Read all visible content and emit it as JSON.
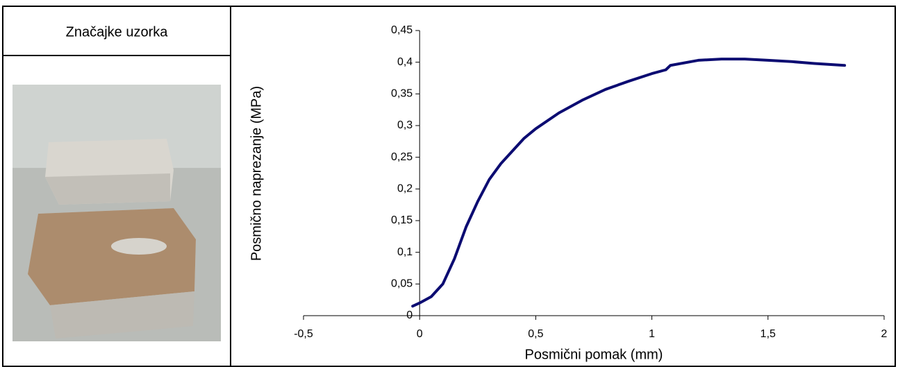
{
  "header": "Značajke uzorka",
  "chart_data": {
    "type": "line",
    "x_label": "Posmični pomak (mm)",
    "y_label": "Posmično naprezanje (MPa)",
    "xlim": [
      -0.5,
      2
    ],
    "xticks": [
      {
        "value": -0.5,
        "label": "-0,5"
      },
      0,
      {
        "value": 0.5,
        "label": "0,5"
      },
      1,
      {
        "value": 1.5,
        "label": "1,5"
      },
      2
    ],
    "ylim": [
      0,
      0.45
    ],
    "yticks": [
      0,
      {
        "value": 0.05,
        "label": "0,05"
      },
      {
        "value": 0.1,
        "label": "0,1"
      },
      {
        "value": 0.15,
        "label": "0,15"
      },
      {
        "value": 0.2,
        "label": "0,2"
      },
      {
        "value": 0.25,
        "label": "0,25"
      },
      {
        "value": 0.3,
        "label": "0,3"
      },
      {
        "value": 0.35,
        "label": "0,35"
      },
      {
        "value": 0.4,
        "label": "0,4"
      },
      {
        "value": 0.45,
        "label": "0,45"
      }
    ],
    "x": [
      -0.03,
      0,
      0.05,
      0.1,
      0.15,
      0.2,
      0.25,
      0.3,
      0.35,
      0.4,
      0.45,
      0.5,
      0.6,
      0.7,
      0.8,
      0.9,
      1.0,
      1.06,
      1.08,
      1.2,
      1.3,
      1.4,
      1.5,
      1.6,
      1.7,
      1.83
    ],
    "values": [
      0.015,
      0.02,
      0.03,
      0.05,
      0.09,
      0.14,
      0.18,
      0.215,
      0.24,
      0.26,
      0.28,
      0.295,
      0.32,
      0.34,
      0.357,
      0.37,
      0.382,
      0.388,
      0.395,
      0.403,
      0.405,
      0.405,
      0.403,
      0.401,
      0.398,
      0.395
    ],
    "color": "#0c0c72"
  }
}
